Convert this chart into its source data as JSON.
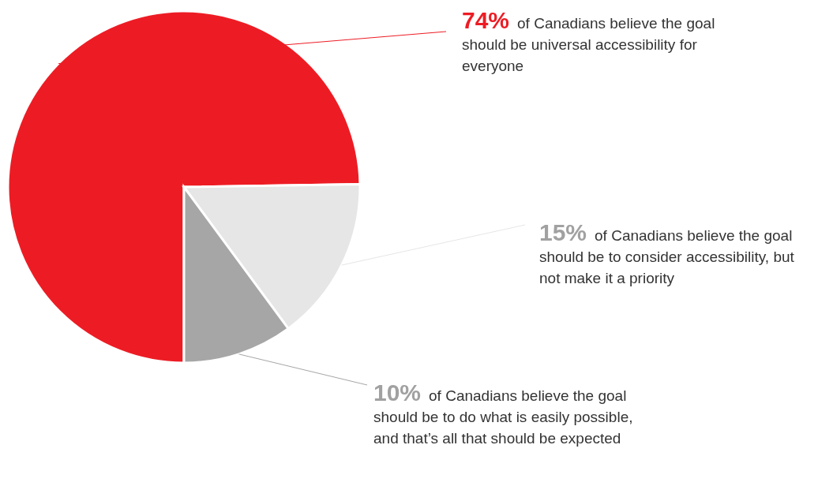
{
  "chart_data": {
    "type": "pie",
    "categories": [
      "of Canadians believe the goal should be universal accessibility for everyone",
      "of Canadians believe the goal should be to consider accessibility, but not make it a priority",
      "of Canadians believe the goal should be to do what is easily possible, and that’s all that should be expected"
    ],
    "values": [
      74,
      15,
      10
    ],
    "value_labels": [
      "74%",
      "15%",
      "10%"
    ],
    "colors": [
      "#ed1c24",
      "#e6e6e6",
      "#a6a6a6"
    ]
  }
}
